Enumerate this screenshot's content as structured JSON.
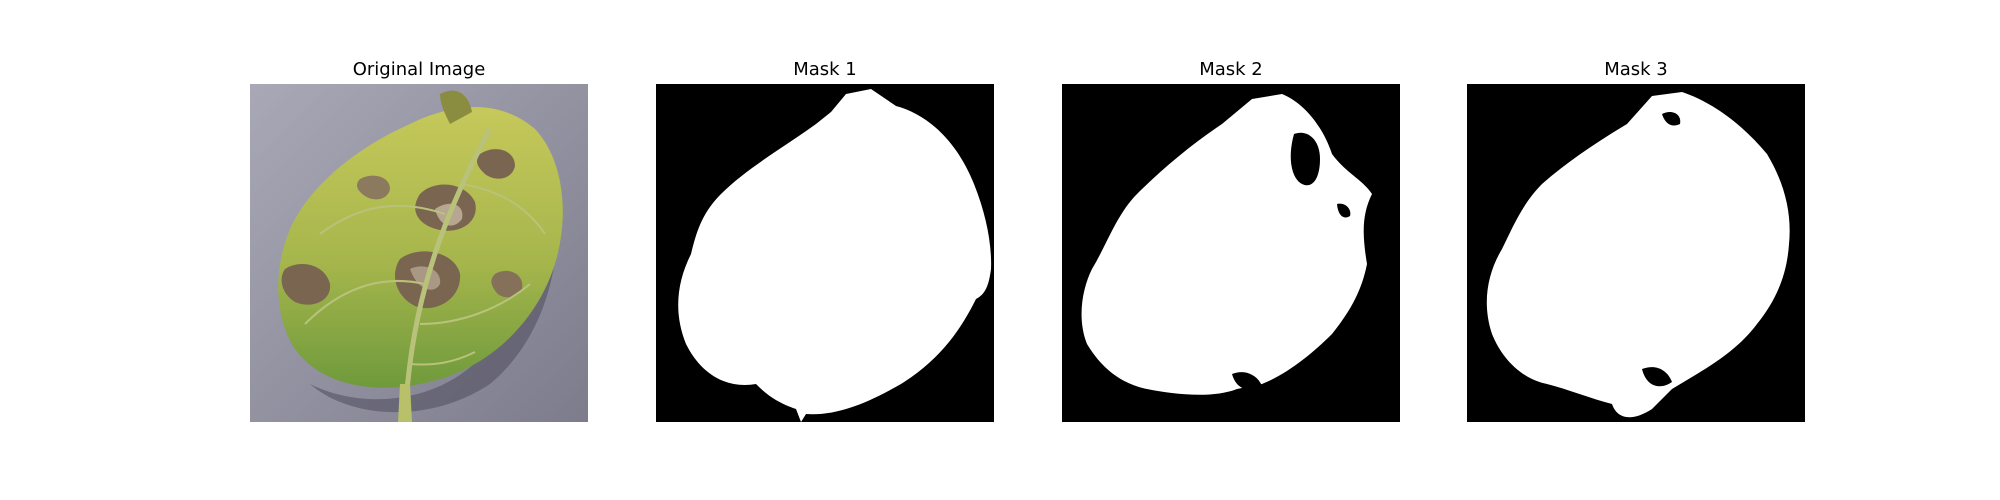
{
  "panels": [
    {
      "title": "Original Image",
      "kind": "photo",
      "subject": "leaf-photo"
    },
    {
      "title": "Mask 1",
      "kind": "mask",
      "subject": "leaf-mask-1"
    },
    {
      "title": "Mask 2",
      "kind": "mask",
      "subject": "leaf-mask-2"
    },
    {
      "title": "Mask 3",
      "kind": "mask",
      "subject": "leaf-mask-3"
    }
  ],
  "colors": {
    "background": "#ffffff",
    "mask_background": "#000000",
    "mask_foreground": "#ffffff",
    "ground": "#8f8fa0",
    "leaf_light": "#d6d86a",
    "leaf_green": "#7fa640",
    "lesion": "#7a6550"
  }
}
